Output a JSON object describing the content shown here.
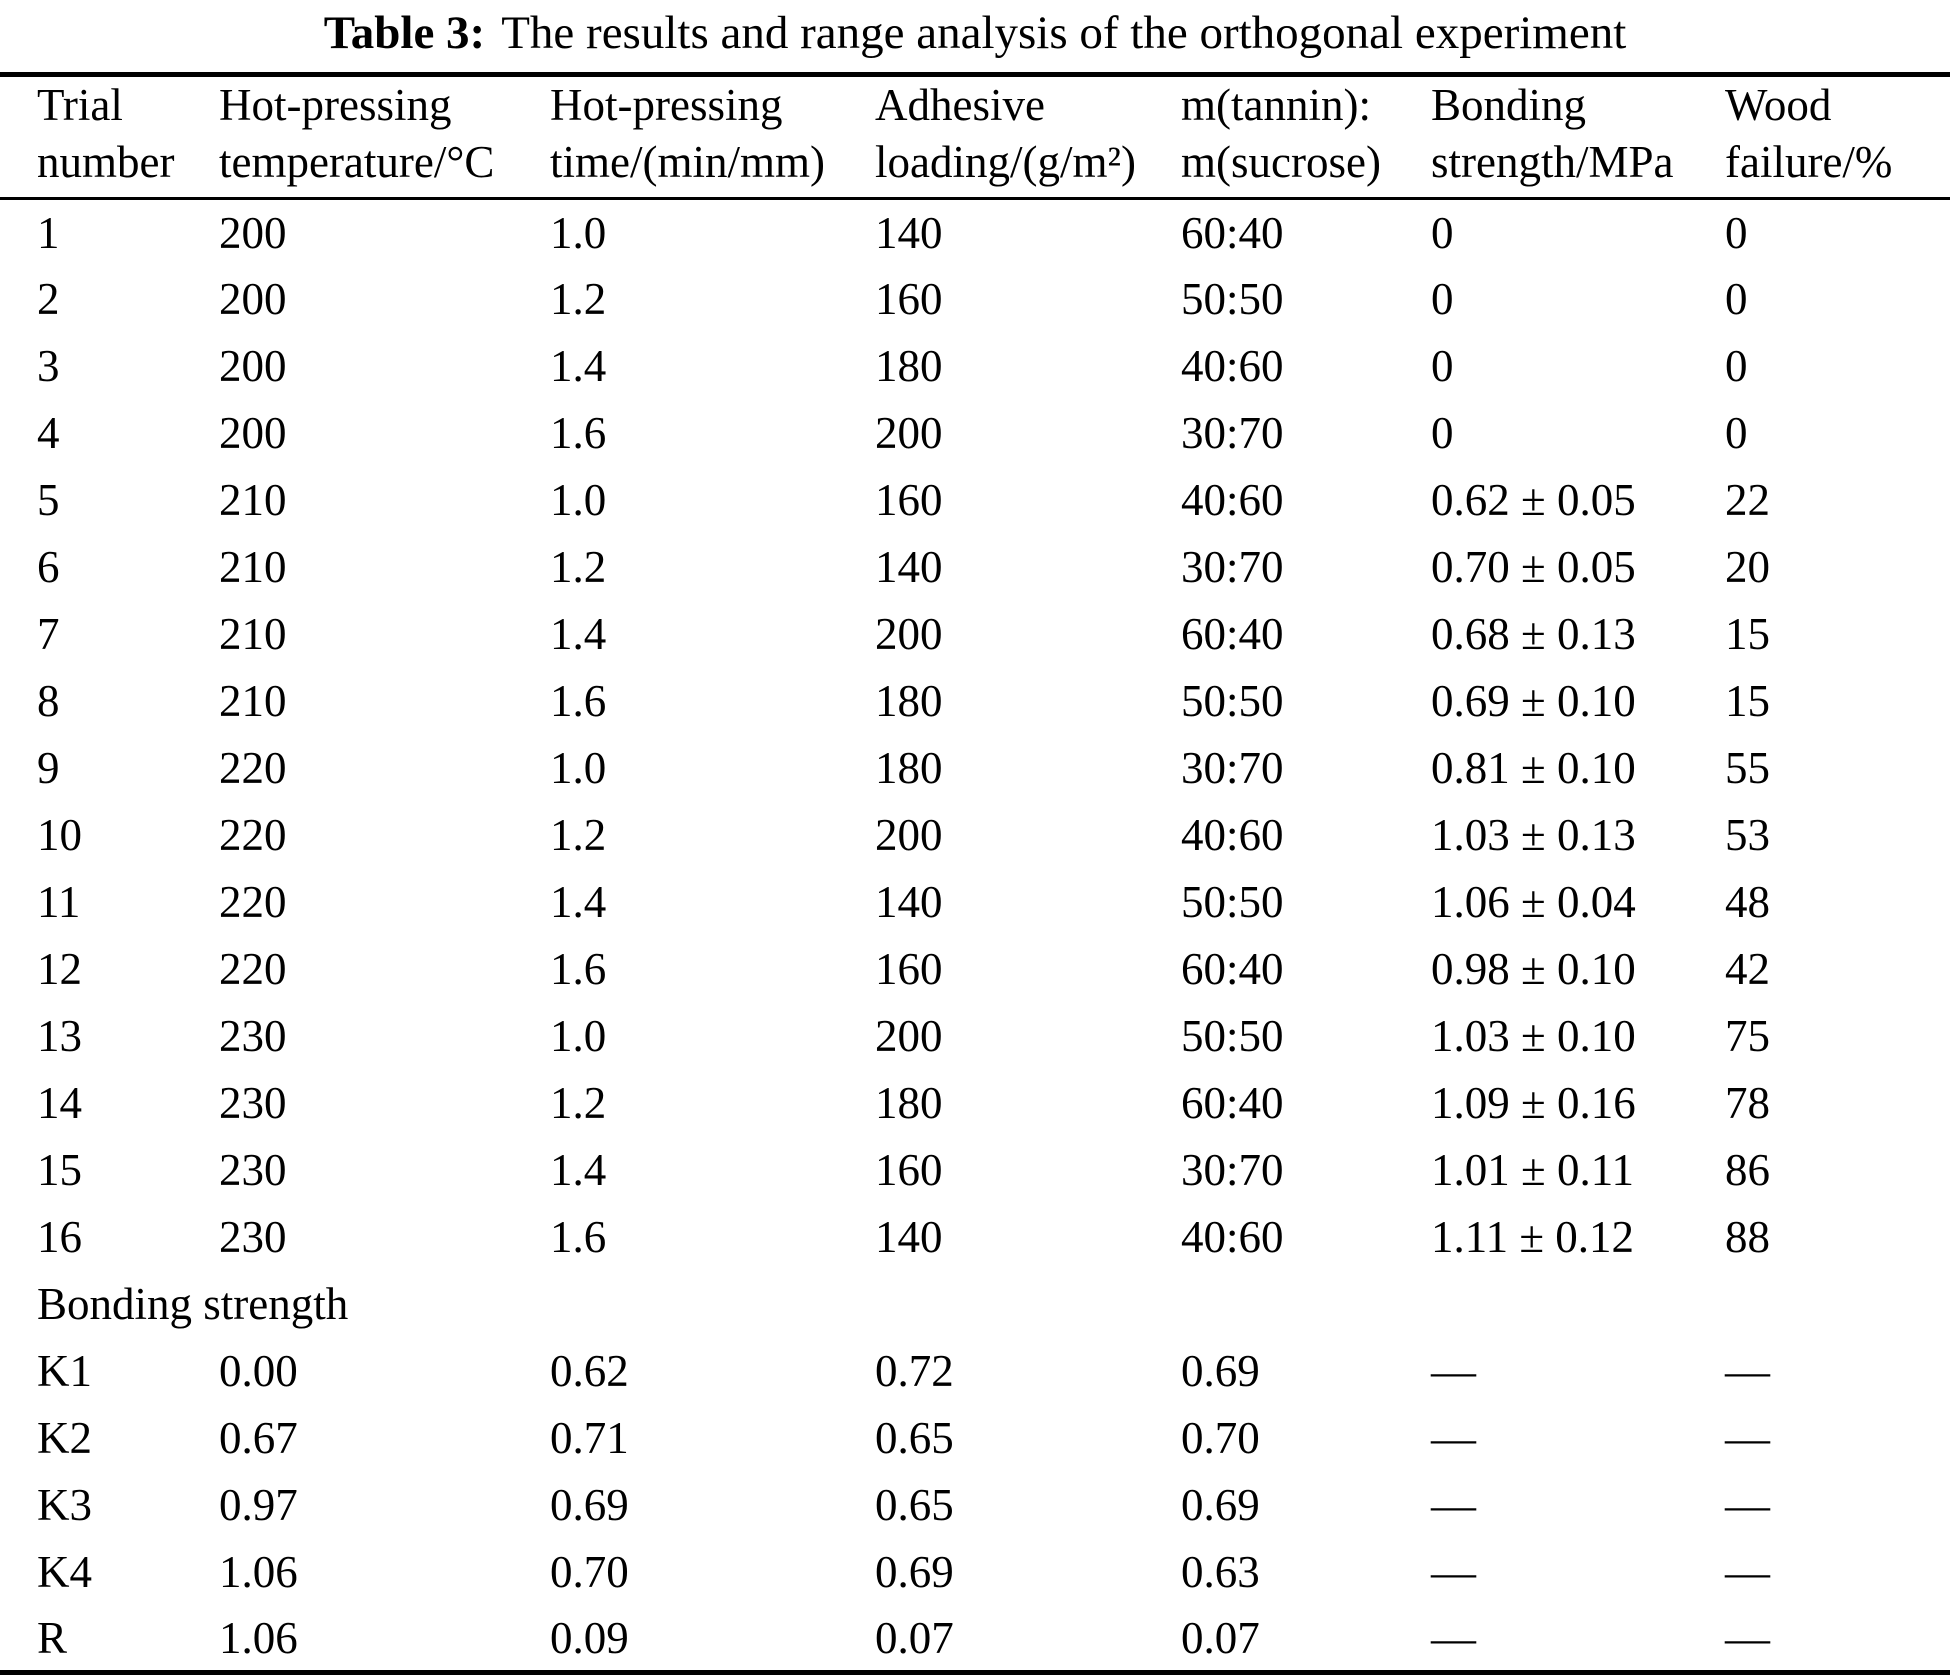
{
  "caption": {
    "label": "Table 3:",
    "text": "The results and range analysis of the orthogonal experiment"
  },
  "table": {
    "headers": [
      {
        "line1": "Trial",
        "line2": "number"
      },
      {
        "line1": "Hot-pressing",
        "line2": "temperature/°C"
      },
      {
        "line1": "Hot-pressing",
        "line2": "time/(min/mm)"
      },
      {
        "line1": "Adhesive",
        "line2": "loading/(g/m²)"
      },
      {
        "line1": "m(tannin):",
        "line2": "m(sucrose)"
      },
      {
        "line1": "Bonding",
        "line2": "strength/MPa"
      },
      {
        "line1": "Wood",
        "line2": "failure/%"
      }
    ],
    "rows": [
      [
        "1",
        "200",
        "1.0",
        "140",
        "60:40",
        "0",
        "0"
      ],
      [
        "2",
        "200",
        "1.2",
        "160",
        "50:50",
        "0",
        "0"
      ],
      [
        "3",
        "200",
        "1.4",
        "180",
        "40:60",
        "0",
        "0"
      ],
      [
        "4",
        "200",
        "1.6",
        "200",
        "30:70",
        "0",
        "0"
      ],
      [
        "5",
        "210",
        "1.0",
        "160",
        "40:60",
        "0.62 ± 0.05",
        "22"
      ],
      [
        "6",
        "210",
        "1.2",
        "140",
        "30:70",
        "0.70 ± 0.05",
        "20"
      ],
      [
        "7",
        "210",
        "1.4",
        "200",
        "60:40",
        "0.68 ± 0.13",
        "15"
      ],
      [
        "8",
        "210",
        "1.6",
        "180",
        "50:50",
        "0.69 ± 0.10",
        "15"
      ],
      [
        "9",
        "220",
        "1.0",
        "180",
        "30:70",
        "0.81 ± 0.10",
        "55"
      ],
      [
        "10",
        "220",
        "1.2",
        "200",
        "40:60",
        "1.03 ± 0.13",
        "53"
      ],
      [
        "11",
        "220",
        "1.4",
        "140",
        "50:50",
        "1.06 ± 0.04",
        "48"
      ],
      [
        "12",
        "220",
        "1.6",
        "160",
        "60:40",
        "0.98 ± 0.10",
        "42"
      ],
      [
        "13",
        "230",
        "1.0",
        "200",
        "50:50",
        "1.03 ± 0.10",
        "75"
      ],
      [
        "14",
        "230",
        "1.2",
        "180",
        "60:40",
        "1.09 ± 0.16",
        "78"
      ],
      [
        "15",
        "230",
        "1.4",
        "160",
        "30:70",
        "1.01 ± 0.11",
        "86"
      ],
      [
        "16",
        "230",
        "1.6",
        "140",
        "40:60",
        "1.11 ± 0.12",
        "88"
      ]
    ],
    "section_label": "Bonding strength",
    "analysis_rows": [
      [
        "K1",
        "0.00",
        "0.62",
        "0.72",
        "0.69",
        "—",
        "—"
      ],
      [
        "K2",
        "0.67",
        "0.71",
        "0.65",
        "0.70",
        "—",
        "—"
      ],
      [
        "K3",
        "0.97",
        "0.69",
        "0.65",
        "0.69",
        "—",
        "—"
      ],
      [
        "K4",
        "1.06",
        "0.70",
        "0.69",
        "0.63",
        "—",
        "—"
      ],
      [
        "R",
        "1.06",
        "0.09",
        "0.07",
        "0.07",
        "—",
        "—"
      ]
    ]
  },
  "chart_data": {
    "type": "table",
    "title": "Table 3: The results and range analysis of the orthogonal experiment",
    "columns": [
      "Trial number",
      "Hot-pressing temperature/°C",
      "Hot-pressing time/(min/mm)",
      "Adhesive loading/(g/m²)",
      "m(tannin):m(sucrose)",
      "Bonding strength/MPa",
      "Wood failure/%"
    ],
    "bonding_strength_K": {
      "K1": [
        0.0,
        0.62,
        0.72,
        0.69
      ],
      "K2": [
        0.67,
        0.71,
        0.65,
        0.7
      ],
      "K3": [
        0.97,
        0.69,
        0.65,
        0.69
      ],
      "K4": [
        1.06,
        0.7,
        0.69,
        0.63
      ],
      "R": [
        1.06,
        0.09,
        0.07,
        0.07
      ]
    }
  }
}
